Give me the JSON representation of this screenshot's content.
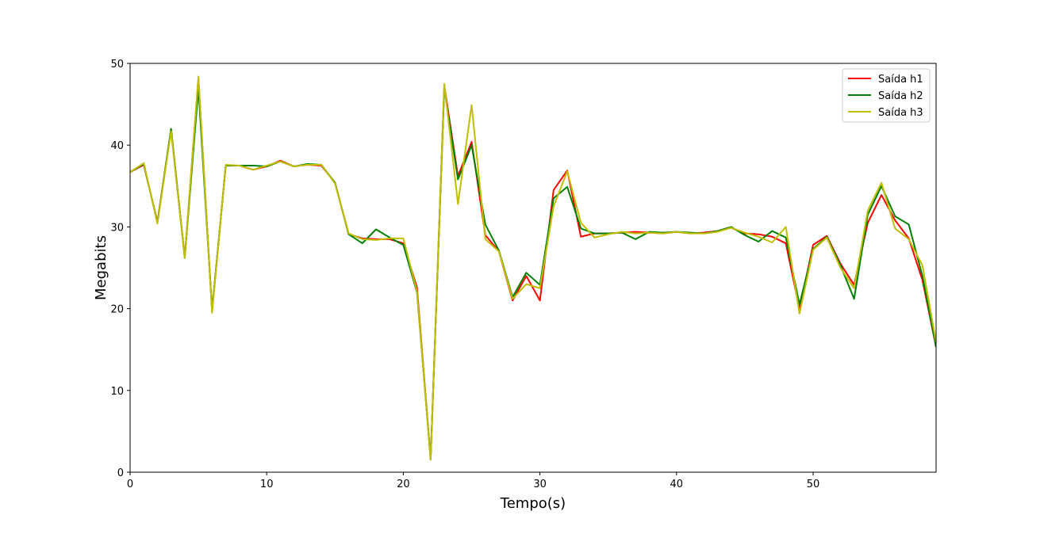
{
  "chart_data": {
    "type": "line",
    "title": "",
    "xlabel": "Tempo(s)",
    "ylabel": "Megabits",
    "xlim": [
      0,
      59
    ],
    "ylim": [
      0,
      50
    ],
    "xticks": [
      0,
      10,
      20,
      30,
      40,
      50
    ],
    "yticks": [
      0,
      10,
      20,
      30,
      40,
      50
    ],
    "grid": false,
    "legend_position": "top-right",
    "x": [
      0,
      1,
      2,
      3,
      4,
      5,
      6,
      7,
      8,
      9,
      10,
      11,
      12,
      13,
      14,
      15,
      16,
      17,
      18,
      19,
      20,
      21,
      22,
      23,
      24,
      25,
      26,
      27,
      28,
      29,
      30,
      31,
      32,
      33,
      34,
      35,
      36,
      37,
      38,
      39,
      40,
      41,
      42,
      43,
      44,
      45,
      46,
      47,
      48,
      49,
      50,
      51,
      52,
      53,
      54,
      55,
      56,
      57,
      58,
      59
    ],
    "series": [
      {
        "name": "Saída h1",
        "color": "#ff0000",
        "values": [
          36.7,
          37.6,
          30.6,
          41.9,
          26.3,
          48.2,
          19.7,
          37.5,
          37.5,
          37.0,
          37.4,
          38.1,
          37.4,
          37.6,
          37.5,
          35.4,
          29.1,
          28.6,
          28.5,
          28.5,
          28.0,
          22.6,
          1.6,
          47.3,
          36.2,
          40.4,
          29.0,
          27.0,
          21.0,
          24.0,
          21.0,
          34.5,
          36.9,
          28.8,
          29.2,
          29.2,
          29.3,
          29.4,
          29.3,
          29.2,
          29.4,
          29.2,
          29.3,
          29.5,
          29.9,
          29.2,
          29.1,
          28.8,
          28.0,
          20.0,
          27.8,
          28.9,
          25.5,
          22.9,
          30.5,
          33.9,
          30.8,
          28.6,
          23.5,
          15.3
        ]
      },
      {
        "name": "Saída h2",
        "color": "#008000",
        "values": [
          36.7,
          37.7,
          30.5,
          42.0,
          26.2,
          47.0,
          19.8,
          37.5,
          37.5,
          37.5,
          37.4,
          38.0,
          37.4,
          37.7,
          37.6,
          35.4,
          29.1,
          28.0,
          29.7,
          28.7,
          27.8,
          22.0,
          1.6,
          47.0,
          35.8,
          40.0,
          30.3,
          27.1,
          21.4,
          24.4,
          22.9,
          33.5,
          34.9,
          29.8,
          29.2,
          29.2,
          29.3,
          28.5,
          29.4,
          29.3,
          29.4,
          29.3,
          29.2,
          29.5,
          30.0,
          29.0,
          28.2,
          29.5,
          28.7,
          20.5,
          27.3,
          28.8,
          25.3,
          21.2,
          31.5,
          35.0,
          31.3,
          30.3,
          24.0,
          15.3
        ]
      },
      {
        "name": "Saída h3",
        "color": "#bfbf00",
        "values": [
          36.7,
          37.8,
          30.4,
          41.7,
          26.2,
          48.4,
          19.5,
          37.6,
          37.5,
          37.0,
          37.5,
          38.0,
          37.4,
          37.6,
          37.6,
          35.3,
          29.2,
          28.5,
          28.4,
          28.6,
          28.6,
          22.1,
          1.5,
          47.5,
          32.8,
          44.9,
          28.5,
          27.0,
          21.2,
          23.0,
          22.5,
          32.5,
          36.8,
          30.5,
          28.7,
          29.1,
          29.4,
          29.2,
          29.3,
          29.2,
          29.4,
          29.2,
          29.2,
          29.4,
          29.9,
          29.3,
          28.8,
          28.1,
          30.0,
          19.4,
          27.2,
          28.7,
          25.0,
          22.5,
          32.0,
          35.4,
          29.8,
          28.5,
          25.3,
          15.9
        ]
      }
    ]
  }
}
